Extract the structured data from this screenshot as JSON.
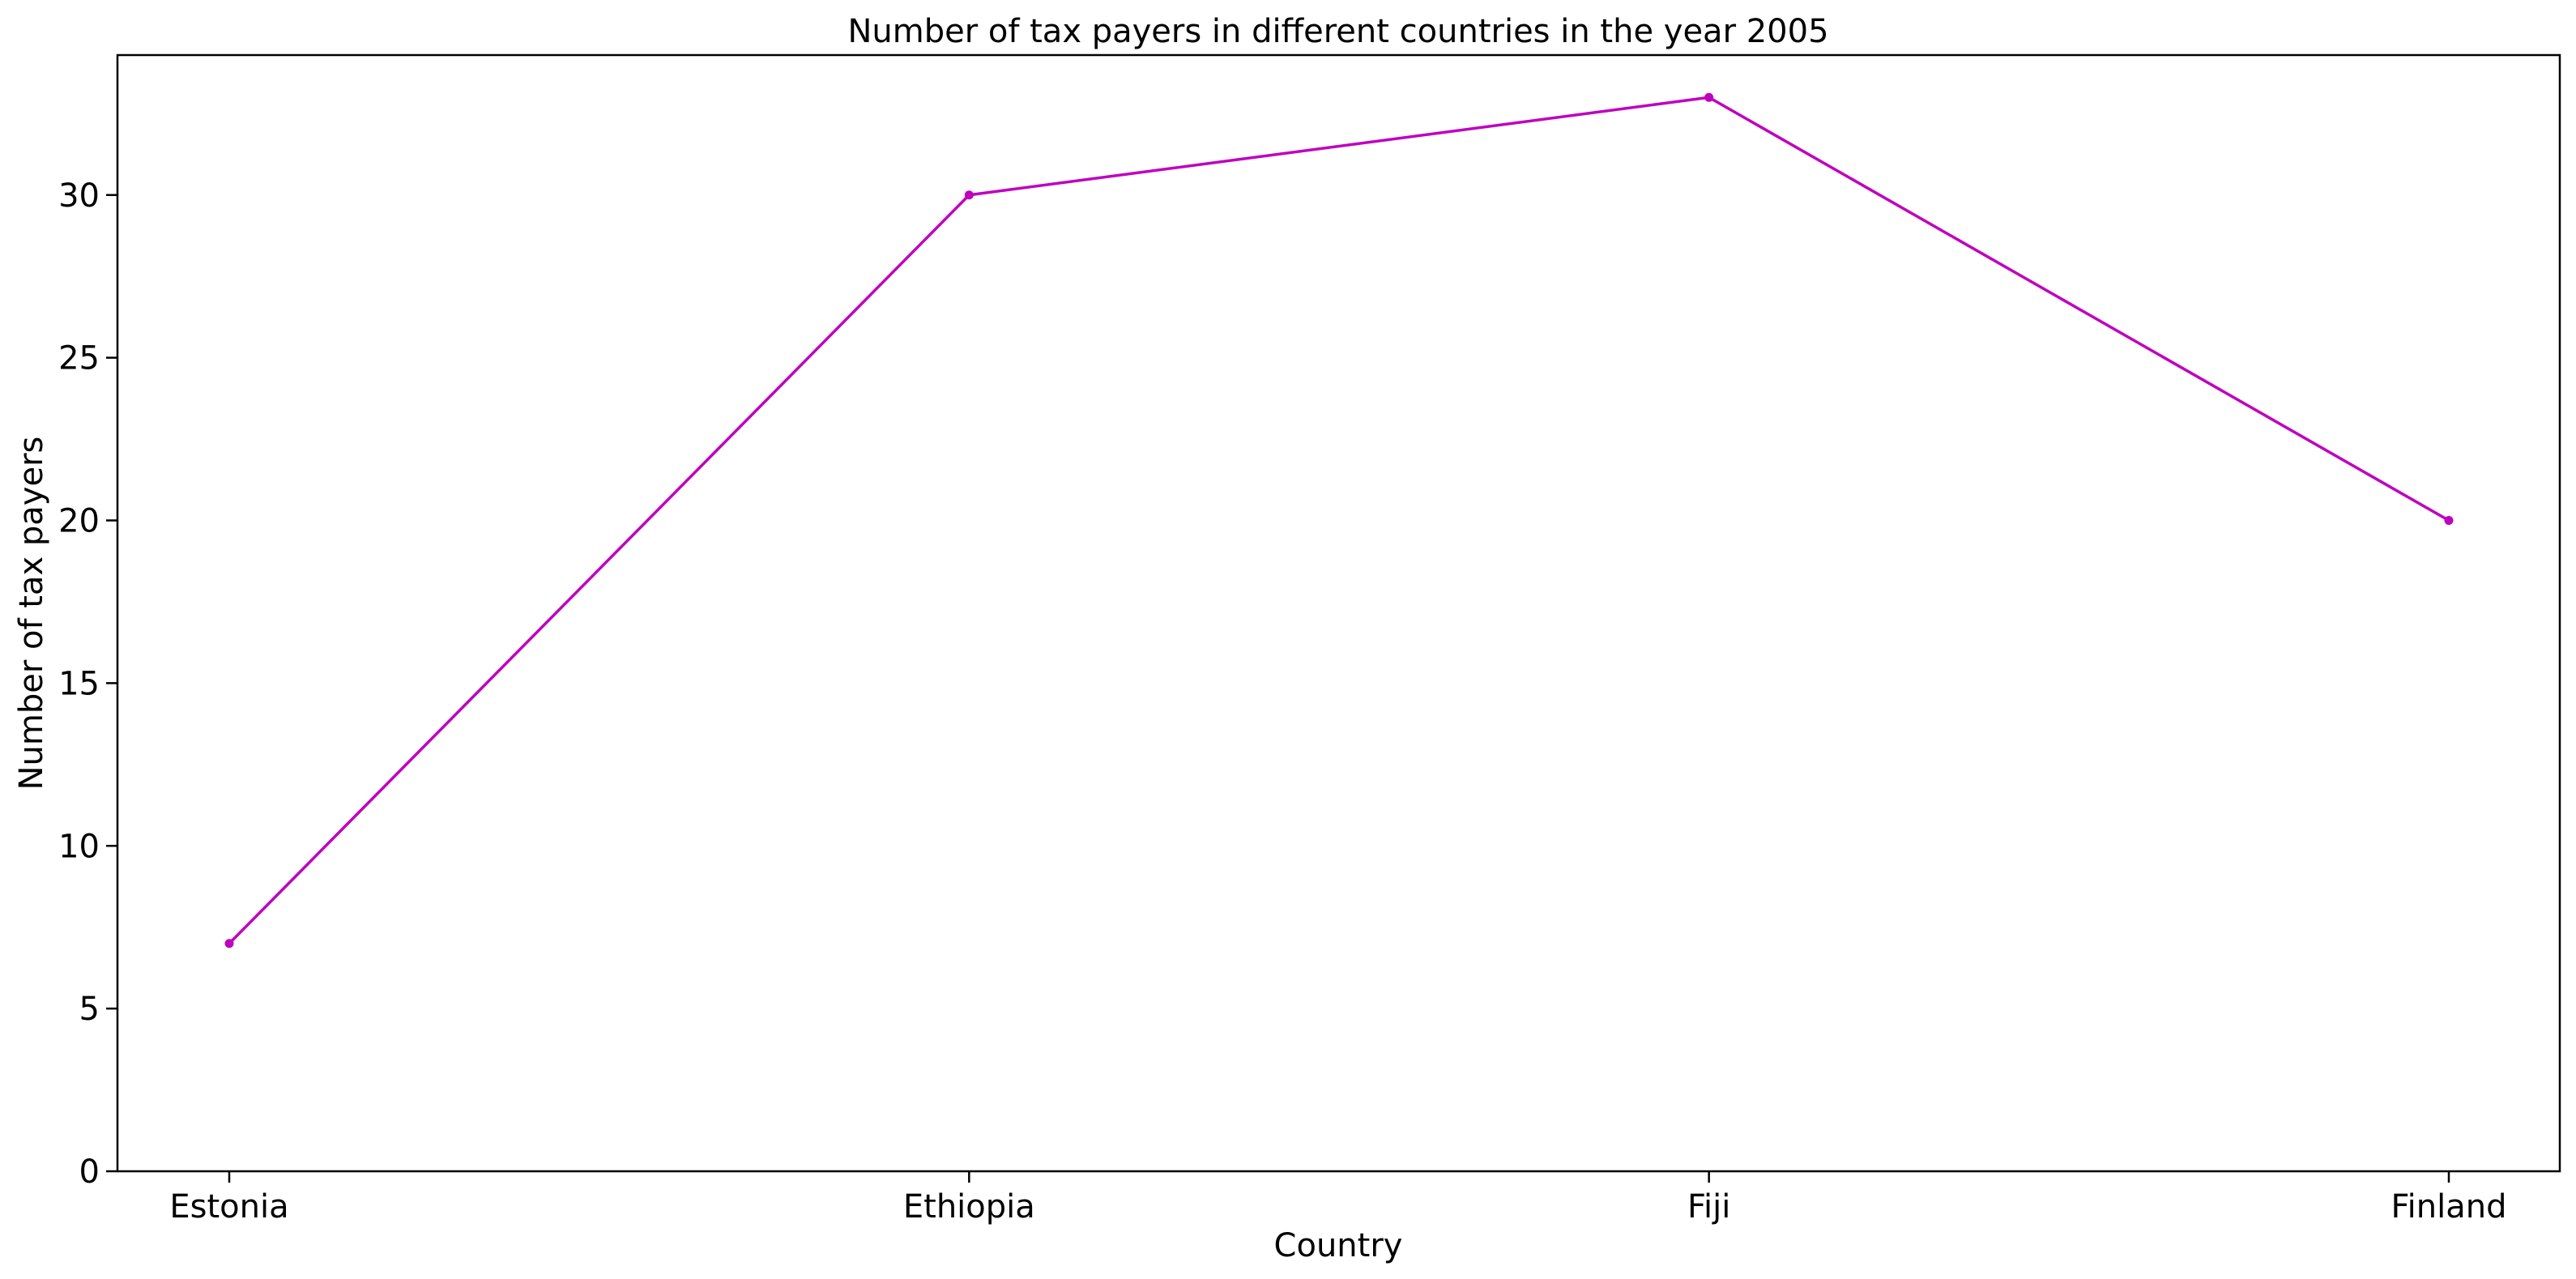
{
  "chart_data": {
    "type": "line",
    "title": "Number of tax payers in different countries in the year 2005",
    "xlabel": "Country",
    "ylabel": "Number of tax payers",
    "categories": [
      "Estonia",
      "Ethiopia",
      "Fiji",
      "Finland"
    ],
    "series": [
      {
        "values": [
          7,
          30,
          33,
          20
        ],
        "color": "#bf00bf"
      }
    ],
    "ylim": [
      0,
      34.3
    ],
    "yticks": [
      0,
      5,
      10,
      15,
      20,
      25,
      30
    ],
    "grid": false,
    "legend": "none"
  }
}
